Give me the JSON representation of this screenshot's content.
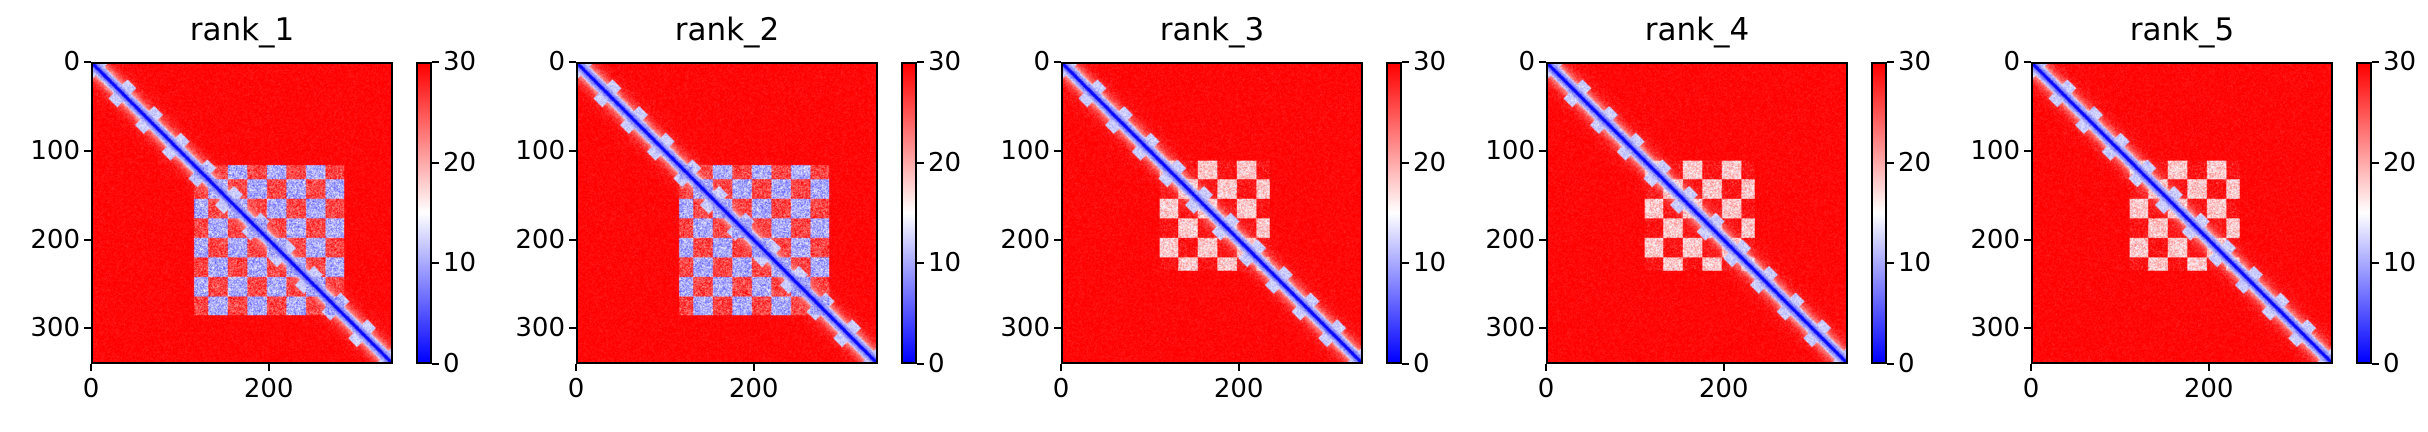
{
  "chart_data": [
    {
      "type": "heatmap",
      "title": "rank_1",
      "n": 340,
      "xticks": [
        "0",
        "200"
      ],
      "yticks": [
        "0",
        "100",
        "200",
        "300"
      ],
      "colorbar": {
        "min": 0,
        "max": 30,
        "ticks": [
          "0",
          "10",
          "20",
          "30"
        ],
        "colormap": "bwr"
      },
      "block": {
        "start": 115,
        "end": 285,
        "inner_low": 6,
        "inner_high": 22
      }
    },
    {
      "type": "heatmap",
      "title": "rank_2",
      "n": 340,
      "xticks": [
        "0",
        "200"
      ],
      "yticks": [
        "0",
        "100",
        "200",
        "300"
      ],
      "colorbar": {
        "min": 0,
        "max": 30,
        "ticks": [
          "0",
          "10",
          "20",
          "30"
        ],
        "colormap": "bwr"
      },
      "block": {
        "start": 115,
        "end": 285,
        "inner_low": 6,
        "inner_high": 22
      }
    },
    {
      "type": "heatmap",
      "title": "rank_3",
      "n": 340,
      "xticks": [
        "0",
        "200"
      ],
      "yticks": [
        "0",
        "100",
        "200",
        "300"
      ],
      "colorbar": {
        "min": 0,
        "max": 30,
        "ticks": [
          "0",
          "10",
          "20",
          "30"
        ],
        "colormap": "bwr"
      },
      "block": {
        "start": 110,
        "end": 235,
        "inner_low": 14,
        "inner_high": 26
      }
    },
    {
      "type": "heatmap",
      "title": "rank_4",
      "n": 340,
      "xticks": [
        "0",
        "200"
      ],
      "yticks": [
        "0",
        "100",
        "200",
        "300"
      ],
      "colorbar": {
        "min": 0,
        "max": 30,
        "ticks": [
          "0",
          "10",
          "20",
          "30"
        ],
        "colormap": "bwr"
      },
      "block": {
        "start": 110,
        "end": 235,
        "inner_low": 14,
        "inner_high": 26
      }
    },
    {
      "type": "heatmap",
      "title": "rank_5",
      "n": 340,
      "xticks": [
        "0",
        "200"
      ],
      "yticks": [
        "0",
        "100",
        "200",
        "300"
      ],
      "colorbar": {
        "min": 0,
        "max": 30,
        "ticks": [
          "0",
          "10",
          "20",
          "30"
        ],
        "colormap": "bwr"
      },
      "block": {
        "start": 110,
        "end": 235,
        "inner_low": 14,
        "inner_high": 26
      }
    }
  ],
  "colors": {
    "low": "#0000ff",
    "mid": "#ffffff",
    "high": "#ff0000"
  }
}
